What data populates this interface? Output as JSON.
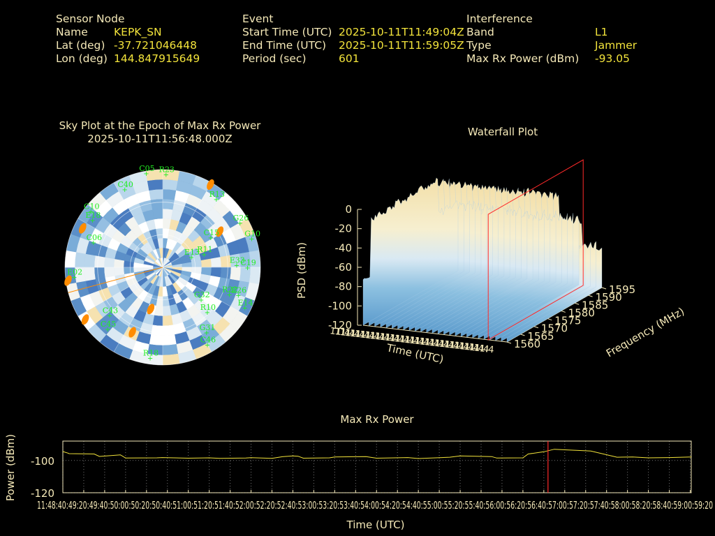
{
  "header": {
    "sensor": {
      "heading": "Sensor Node",
      "name_label": "Name",
      "name_value": "KEPK_SN",
      "lat_label": "Lat (deg)",
      "lat_value": "-37.721046448",
      "lon_label": "Lon (deg)",
      "lon_value": "144.847915649"
    },
    "event": {
      "heading": "Event",
      "start_label": "Start Time (UTC)",
      "start_value": "2025-10-11T11:49:04Z",
      "end_label": "End Time (UTC)",
      "end_value": "2025-10-11T11:59:05Z",
      "period_label": "Period (sec)",
      "period_value": "601"
    },
    "interference": {
      "heading": "Interference",
      "band_label": "Band",
      "band_value": "L1",
      "type_label": "Type",
      "type_value": "Jammer",
      "power_label": "Max Rx Power (dBm)",
      "power_value": "-93.05"
    }
  },
  "colors": {
    "label": "#f5e9b8",
    "value": "#f2e33b",
    "sat_label": "#22ee22",
    "sun": "#ff8c00",
    "marker": "#ff2a2a",
    "trace": "#f2e33b",
    "axis": "#f5e9b8"
  },
  "chart_data": [
    {
      "type": "scatter",
      "subtype": "polar-sky-plot",
      "title": "Sky Plot at the Epoch of Max Rx Power",
      "subtitle": "2025-10-11T11:56:48.000Z",
      "satellites": [
        {
          "id": "R23",
          "az": 2,
          "el": 4
        },
        {
          "id": "R13",
          "az": 38,
          "el": 10
        },
        {
          "id": "G26",
          "az": 60,
          "el": 8
        },
        {
          "id": "G10",
          "az": 72,
          "el": 4
        },
        {
          "id": "C15",
          "az": 58,
          "el": 38
        },
        {
          "id": "E13",
          "az": 70,
          "el": 62
        },
        {
          "id": "R11",
          "az": 72,
          "el": 50
        },
        {
          "id": "C19",
          "az": 90,
          "el": 12
        },
        {
          "id": "E33",
          "az": 88,
          "el": 22
        },
        {
          "id": "R22",
          "az": 112,
          "el": 24
        },
        {
          "id": "E26",
          "az": 110,
          "el": 16
        },
        {
          "id": "E14",
          "az": 116,
          "el": 6
        },
        {
          "id": "R10",
          "az": 135,
          "el": 32
        },
        {
          "id": "G31",
          "az": 146,
          "el": 18
        },
        {
          "id": "C46",
          "az": 150,
          "el": 8
        },
        {
          "id": "R18",
          "az": 188,
          "el": 6
        },
        {
          "id": "C45",
          "az": 222,
          "el": 14
        },
        {
          "id": "C43",
          "az": 228,
          "el": 24
        },
        {
          "id": "E02",
          "az": 264,
          "el": 8
        },
        {
          "id": "C06",
          "az": 290,
          "el": 22
        },
        {
          "id": "E18",
          "az": 304,
          "el": 12
        },
        {
          "id": "C10",
          "az": 308,
          "el": 6
        },
        {
          "id": "C40",
          "az": 334,
          "el": 10
        },
        {
          "id": "C05",
          "az": 350,
          "el": 2
        },
        {
          "id": "G32",
          "az": 130,
          "el": 44
        }
      ],
      "sun_markers": [
        {
          "az": 30,
          "el": 2
        },
        {
          "az": 58,
          "el": 28
        },
        {
          "az": 205,
          "el": 24
        },
        {
          "az": 196,
          "el": 50
        },
        {
          "az": 236,
          "el": 4
        },
        {
          "az": 262,
          "el": 2
        },
        {
          "az": 296,
          "el": 8
        }
      ]
    },
    {
      "type": "area",
      "subtype": "3d-waterfall",
      "title": "Waterfall Plot",
      "zlabel": "PSD (dBm)",
      "zlim": [
        -120,
        0
      ],
      "z_ticks": [
        0,
        -20,
        -40,
        -60,
        -80,
        -100,
        -120
      ],
      "xlabel": "Time (UTC)",
      "ylabel": "Frequency (MHz)",
      "y_ticks": [
        1560,
        1565,
        1570,
        1575,
        1580,
        1585,
        1590,
        1595
      ]
    },
    {
      "type": "line",
      "title": "Max Rx Power",
      "xlabel": "Time (UTC)",
      "ylabel": "Power (dBm)",
      "ylim": [
        -120,
        -88
      ],
      "y_ticks": [
        -100,
        -120
      ],
      "x_ticks": [
        "11:48:40",
        "11:49:20",
        "11:50:00",
        "11:50:40",
        "11:51:20",
        "11:52:00",
        "11:52:40",
        "11:53:20",
        "11:54:00",
        "11:54:40",
        "11:55:20",
        "11:56:00",
        "11:56:40",
        "11:57:20",
        "11:58:00",
        "11:58:40",
        "11:59:20"
      ],
      "x_tick_label_overlay": "11:48:40:49:20:49:40:50:00:50:20:50:40:51:00:51:20:51:40:52:00:52:20:52:40:53:00:53:20:53:40:54:00:54:20:54:40:55:00:55:20:55:40:56:00:56:20:56:40:57:00:57:20:57:40:58:00:58:20:58:40:59:00:59:20",
      "x_span_sec": [
        0,
        601
      ],
      "series": [
        {
          "t": [
            0,
            5,
            6,
            30,
            35,
            55,
            60,
            90,
            95,
            120,
            140,
            150,
            175,
            180,
            200,
            210,
            220,
            225,
            230,
            255,
            260,
            290,
            300,
            330,
            340,
            370,
            380,
            410,
            415,
            440,
            445,
            460,
            470,
            480,
            500,
            505,
            530,
            545,
            560,
            580,
            601
          ],
          "values": [
            -94.5,
            -95.5,
            -95.8,
            -96.0,
            -97.5,
            -96.5,
            -98.5,
            -98.4,
            -98.2,
            -98.6,
            -98.4,
            -98.7,
            -98.5,
            -98.3,
            -98.7,
            -97.7,
            -97.2,
            -97.4,
            -98.6,
            -98.4,
            -97.8,
            -97.6,
            -98.6,
            -98.2,
            -98.8,
            -98.0,
            -97.2,
            -97.6,
            -98.5,
            -98.4,
            -96.0,
            -94.6,
            -93.05,
            -93.4,
            -94.0,
            -94.2,
            -98.0,
            -97.8,
            -98.4,
            -98.2,
            -97.8
          ]
        }
      ],
      "event_marker_sec": 464
    }
  ]
}
